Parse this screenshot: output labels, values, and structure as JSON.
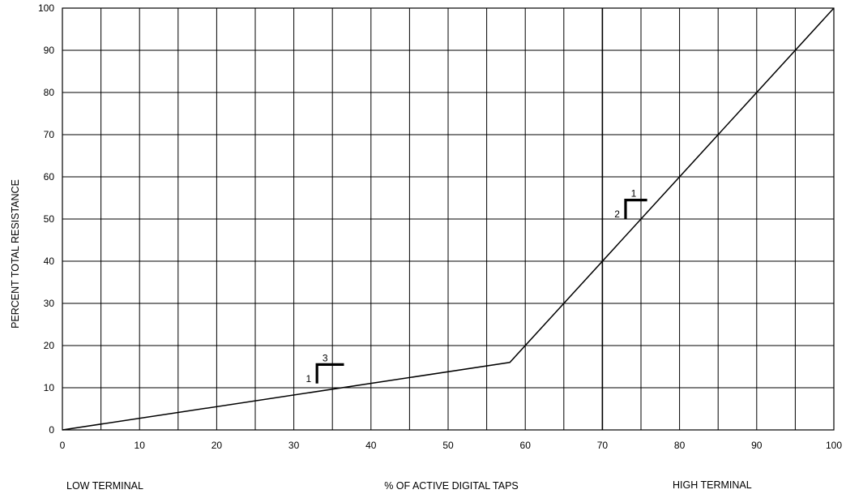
{
  "chart_data": {
    "type": "line",
    "title": "",
    "xlabel": "% OF ACTIVE DIGITAL TAPS",
    "ylabel": "PERCENT TOTAL RESISTANCE",
    "x_left_note": "LOW TERMINAL",
    "x_right_note": "HIGH TERMINAL",
    "xlim": [
      0,
      100
    ],
    "ylim": [
      0,
      100
    ],
    "x_ticks": [
      "0",
      "10",
      "20",
      "30",
      "40",
      "50",
      "60",
      "70",
      "80",
      "90",
      "100"
    ],
    "y_ticks": [
      "0",
      "10",
      "20",
      "30",
      "40",
      "50",
      "60",
      "70",
      "80",
      "90",
      "100"
    ],
    "grid": true,
    "x_grid_step": 5,
    "y_grid_step": 10,
    "series": [
      {
        "x": [
          0,
          58,
          100
        ],
        "y": [
          0,
          16,
          100
        ]
      }
    ],
    "reference_line": {
      "x": 70
    },
    "annotations": [
      {
        "x": 33,
        "y": 11,
        "run": "3",
        "rise": "1",
        "arm_right": 3.5,
        "arm_up": 4.5
      },
      {
        "x": 73,
        "y": 50,
        "run": "1",
        "rise": "2",
        "arm_right": 2.8,
        "arm_up": 4.5
      }
    ]
  }
}
